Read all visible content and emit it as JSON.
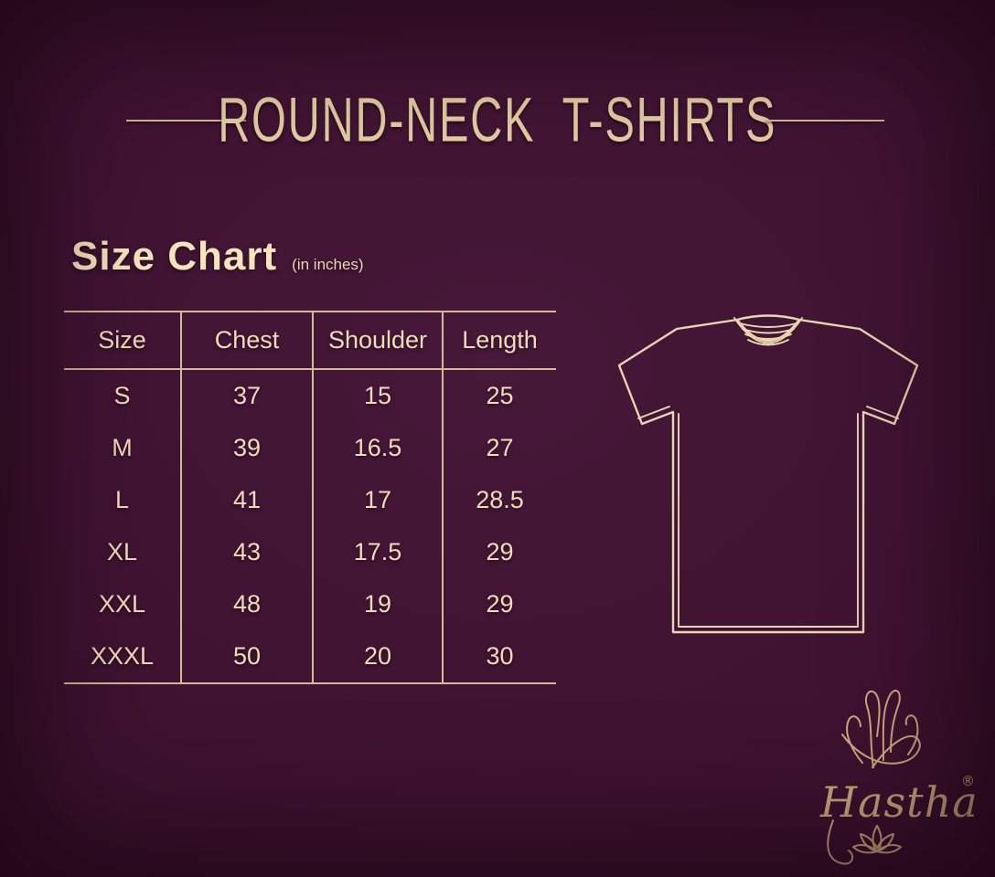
{
  "page": {
    "title": "ROUND-NECK T-SHIRTS"
  },
  "size_chart": {
    "heading": "Size Chart",
    "unit_note": "(in inches)"
  },
  "chart_data": {
    "type": "table",
    "title": "Size Chart",
    "units": "inches",
    "columns": [
      "Size",
      "Chest",
      "Shoulder",
      "Length"
    ],
    "rows": [
      [
        "S",
        37,
        15,
        25
      ],
      [
        "M",
        39,
        16.5,
        27
      ],
      [
        "L",
        41,
        17,
        28.5
      ],
      [
        "XL",
        43,
        17.5,
        29
      ],
      [
        "XXL",
        48,
        19,
        29
      ],
      [
        "XXXL",
        50,
        20,
        30
      ]
    ]
  },
  "illustration": {
    "name": "round-neck t-shirt outline drawing"
  },
  "brand": {
    "name": "Hastha",
    "registered_mark": "®",
    "emblems": [
      "hand-mudra-icon",
      "lotus-icon"
    ]
  },
  "colors": {
    "background": "#3e1230",
    "background_edge": "#2a091e",
    "cream_text": "#efddba",
    "table_line": "#d2ba92",
    "title_text": "#e2cda3",
    "logo_gold": "#cda97e"
  }
}
